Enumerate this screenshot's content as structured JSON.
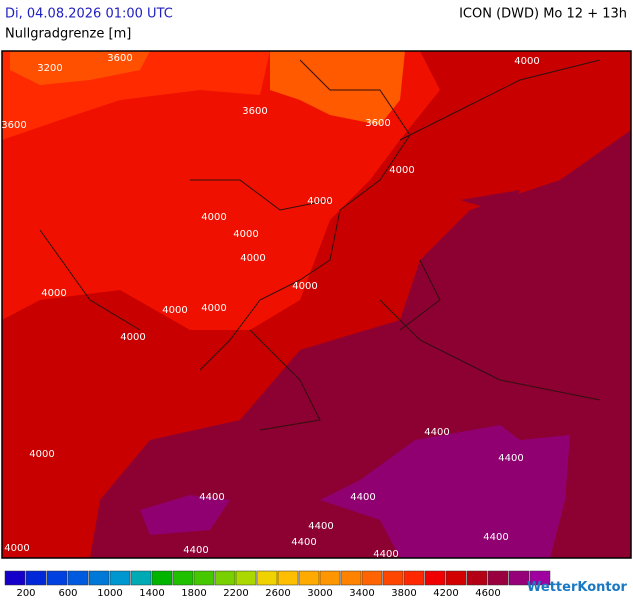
{
  "header": {
    "run_time": "Di, 04.08.2026 01:00 UTC",
    "model": "ICON (DWD) Mo 12 + 13h",
    "parameter": "Nullgradgrenze [m]"
  },
  "map": {
    "contour_labels": [
      3200,
      3600,
      3600,
      3600,
      3600,
      4000,
      4000,
      4000,
      4000,
      4000,
      4000,
      4000,
      4000,
      4000,
      4000,
      4000,
      4000,
      4000,
      4400,
      4400,
      4400,
      4400,
      4400,
      4400,
      4400,
      4400,
      4400
    ]
  },
  "legend": {
    "colors": [
      "#1400c8",
      "#0028d8",
      "#0040e0",
      "#005ae0",
      "#0078d8",
      "#0096d0",
      "#00aab4",
      "#00b400",
      "#1ec000",
      "#46c800",
      "#78d000",
      "#aad800",
      "#f0d200",
      "#ffbe00",
      "#ffaa00",
      "#ff9600",
      "#ff8200",
      "#ff6400",
      "#ff4600",
      "#ff2800",
      "#f00000",
      "#d20000",
      "#b40014",
      "#9a0040",
      "#960078",
      "#a000a0"
    ],
    "ticks": [
      200,
      600,
      1000,
      1400,
      1800,
      2200,
      2600,
      3000,
      3400,
      3800,
      4200,
      4600
    ]
  },
  "brand": "WetterKontor"
}
